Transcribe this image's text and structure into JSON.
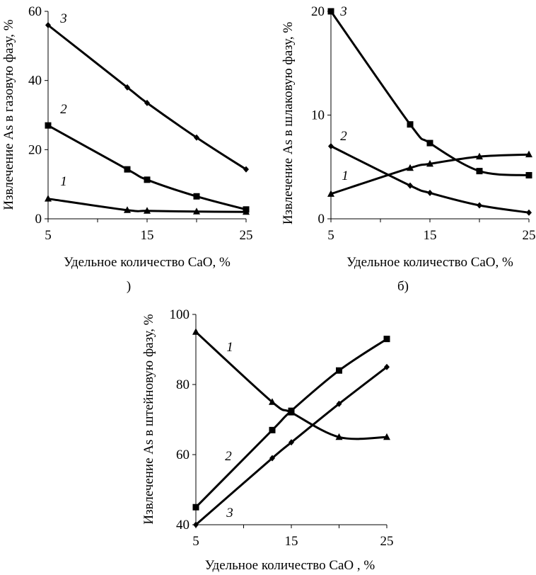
{
  "chart_data": [
    {
      "type": "line",
      "panel_label": ")",
      "xlabel": "Удельное количество CaO, %",
      "ylabel": "Извлечение As в газовую фазу, %",
      "xlim": [
        5,
        25
      ],
      "ylim": [
        0,
        60
      ],
      "xticks": [
        "5",
        "15",
        "25"
      ],
      "yticks": [
        "0",
        "20",
        "40",
        "60"
      ],
      "series": [
        {
          "name": "3",
          "marker": "diamond",
          "x": [
            5,
            13,
            15,
            20,
            25
          ],
          "y": [
            56,
            38,
            33.5,
            23.5,
            14.3
          ]
        },
        {
          "name": "2",
          "marker": "square",
          "x": [
            5,
            13,
            15,
            20,
            25
          ],
          "y": [
            27,
            14.3,
            11.3,
            6.5,
            2.7
          ]
        },
        {
          "name": "1",
          "marker": "triangle",
          "x": [
            5,
            13,
            15,
            20,
            25
          ],
          "y": [
            5.8,
            2.5,
            2.3,
            2.1,
            2.0
          ]
        }
      ]
    },
    {
      "type": "line",
      "panel_label": "б)",
      "xlabel": "Удельное количество CaO, %",
      "ylabel": "Извлечение As в шлаковую фазу, %",
      "xlim": [
        5,
        25
      ],
      "ylim": [
        0,
        20
      ],
      "xticks": [
        "5",
        "15",
        "25"
      ],
      "yticks": [
        "0",
        "10",
        "20"
      ],
      "series": [
        {
          "name": "3",
          "marker": "square",
          "x": [
            5,
            13,
            15,
            20,
            25
          ],
          "y": [
            20,
            9.1,
            7.3,
            4.6,
            4.2
          ]
        },
        {
          "name": "2",
          "marker": "diamond",
          "x": [
            5,
            13,
            15,
            20,
            25
          ],
          "y": [
            7.0,
            3.2,
            2.5,
            1.3,
            0.6
          ]
        },
        {
          "name": "1",
          "marker": "triangle",
          "x": [
            5,
            13,
            15,
            20,
            25
          ],
          "y": [
            2.4,
            4.9,
            5.3,
            6.0,
            6.2
          ]
        }
      ]
    },
    {
      "type": "line",
      "panel_label": "",
      "xlabel": "Удельное количество CaO , %",
      "ylabel": "Извлечение As в штейновую фазу, %",
      "xlim": [
        5,
        25
      ],
      "ylim": [
        40,
        100
      ],
      "xticks": [
        "5",
        "15",
        "25"
      ],
      "yticks": [
        "40",
        "60",
        "80",
        "100"
      ],
      "series": [
        {
          "name": "1",
          "marker": "triangle",
          "x": [
            5,
            13,
            15,
            20,
            25
          ],
          "y": [
            95,
            75,
            72,
            65,
            65
          ]
        },
        {
          "name": "2",
          "marker": "square",
          "x": [
            5,
            13,
            15,
            20,
            25
          ],
          "y": [
            45,
            67,
            72.5,
            84,
            93
          ]
        },
        {
          "name": "3",
          "marker": "diamond",
          "x": [
            5,
            13,
            15,
            20,
            25
          ],
          "y": [
            40,
            59,
            63.5,
            74.5,
            85
          ]
        }
      ]
    }
  ]
}
